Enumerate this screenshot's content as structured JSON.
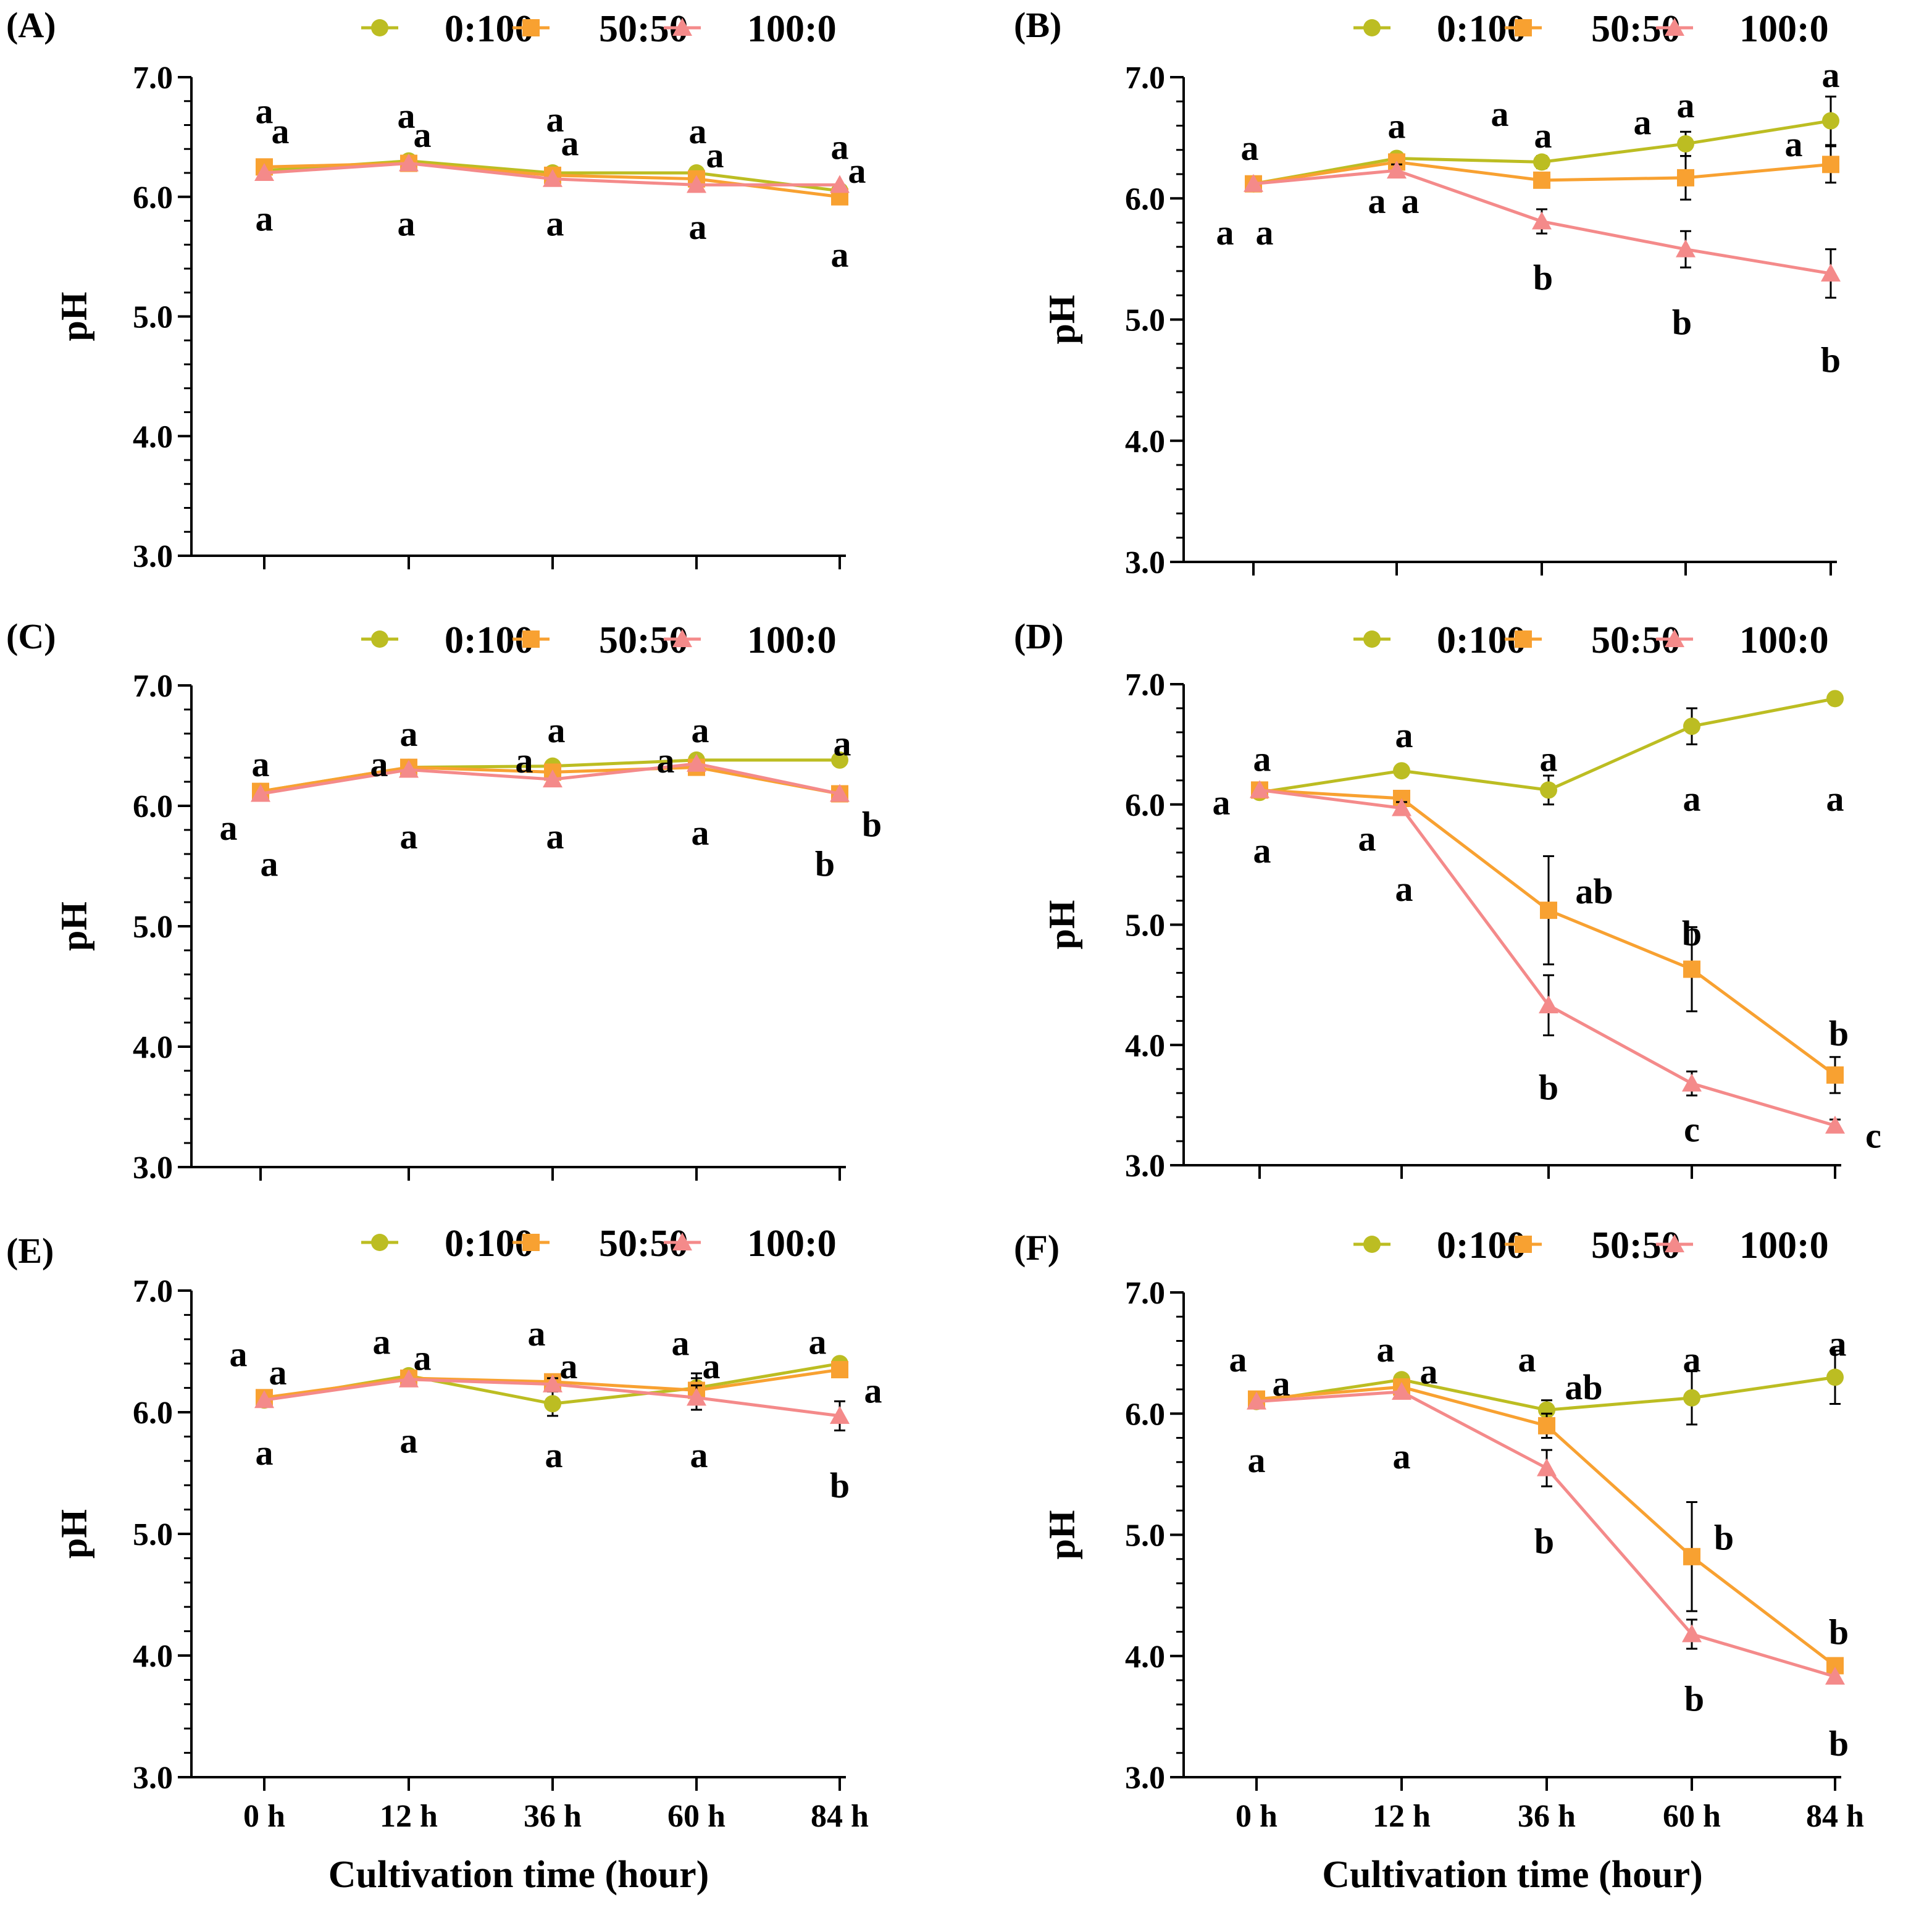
{
  "colors": {
    "s0": "#bcbd22",
    "s1": "#f8a131",
    "s2": "#f48a8a"
  },
  "chart_data": [
    {
      "panel": "(A)",
      "type": "line",
      "categories": [
        "0 h",
        "12 h",
        "36 h",
        "60 h",
        "84 h"
      ],
      "xlabel": "",
      "ylabel": "pH",
      "ylim": [
        3.0,
        7.0
      ],
      "yticks": [
        "3.0",
        "4.0",
        "5.0",
        "6.0",
        "7.0"
      ],
      "legend": [
        "0:100",
        "50:50",
        "100:0"
      ],
      "series": [
        {
          "name": "0:100",
          "values": [
            6.22,
            6.3,
            6.2,
            6.2,
            6.05
          ],
          "errors": [
            0,
            0,
            0,
            0,
            0
          ]
        },
        {
          "name": "50:50",
          "values": [
            6.25,
            6.28,
            6.18,
            6.15,
            6.0
          ],
          "errors": [
            0,
            0,
            0,
            0,
            0
          ]
        },
        {
          "name": "100:0",
          "values": [
            6.2,
            6.28,
            6.15,
            6.1,
            6.1
          ],
          "errors": [
            0,
            0,
            0,
            0,
            0
          ]
        }
      ],
      "annotations": [
        {
          "text": "a",
          "cat": 0,
          "y": 6.72,
          "dx": 0
        },
        {
          "text": "a",
          "cat": 0,
          "y": 6.55,
          "dx": 26
        },
        {
          "text": "a",
          "cat": 0,
          "y": 5.82,
          "dx": 0
        },
        {
          "text": "a",
          "cat": 1,
          "y": 6.68,
          "dx": -4
        },
        {
          "text": "a",
          "cat": 1,
          "y": 6.52,
          "dx": 22
        },
        {
          "text": "a",
          "cat": 1,
          "y": 5.78,
          "dx": -4
        },
        {
          "text": "a",
          "cat": 2,
          "y": 6.65,
          "dx": 4
        },
        {
          "text": "a",
          "cat": 2,
          "y": 6.45,
          "dx": 28
        },
        {
          "text": "a",
          "cat": 2,
          "y": 5.78,
          "dx": 4
        },
        {
          "text": "a",
          "cat": 3,
          "y": 6.55,
          "dx": 2
        },
        {
          "text": "a",
          "cat": 3,
          "y": 6.35,
          "dx": 30
        },
        {
          "text": "a",
          "cat": 3,
          "y": 5.75,
          "dx": 2
        },
        {
          "text": "a",
          "cat": 4,
          "y": 6.42,
          "dx": 0
        },
        {
          "text": "a",
          "cat": 4,
          "y": 6.22,
          "dx": 28
        },
        {
          "text": "a",
          "cat": 4,
          "y": 5.52,
          "dx": 0
        }
      ]
    },
    {
      "panel": "(B)",
      "type": "line",
      "categories": [
        "0 h",
        "12 h",
        "36 h",
        "60 h",
        "84 h"
      ],
      "xlabel": "",
      "ylabel": "pH",
      "ylim": [
        3.0,
        7.0
      ],
      "yticks": [
        "3.0",
        "4.0",
        "5.0",
        "6.0",
        "7.0"
      ],
      "legend": [
        "0:100",
        "50:50",
        "100:0"
      ],
      "series": [
        {
          "name": "0:100",
          "values": [
            6.12,
            6.33,
            6.3,
            6.45,
            6.64
          ],
          "errors": [
            0.03,
            0.04,
            0.05,
            0.1,
            0.2
          ]
        },
        {
          "name": "50:50",
          "values": [
            6.12,
            6.3,
            6.15,
            6.17,
            6.28
          ],
          "errors": [
            0.03,
            0.05,
            0.05,
            0.18,
            0.15
          ]
        },
        {
          "name": "100:0",
          "values": [
            6.12,
            6.23,
            5.81,
            5.58,
            5.38
          ],
          "errors": [
            0.03,
            0.05,
            0.1,
            0.15,
            0.2
          ]
        }
      ],
      "annotations": [
        {
          "text": "a",
          "cat": 0,
          "y": 6.42,
          "dx": -6
        },
        {
          "text": "a",
          "cat": 0,
          "y": 5.72,
          "dx": -46
        },
        {
          "text": "a",
          "cat": 0,
          "y": 5.72,
          "dx": 18
        },
        {
          "text": "a",
          "cat": 1,
          "y": 6.6,
          "dx": 0
        },
        {
          "text": "a",
          "cat": 1,
          "y": 5.98,
          "dx": -32
        },
        {
          "text": "a",
          "cat": 1,
          "y": 5.98,
          "dx": 22
        },
        {
          "text": "a",
          "cat": 2,
          "y": 6.7,
          "dx": -68
        },
        {
          "text": "a",
          "cat": 2,
          "y": 6.52,
          "dx": 2
        },
        {
          "text": "b",
          "cat": 2,
          "y": 5.35,
          "dx": 2
        },
        {
          "text": "a",
          "cat": 3,
          "y": 6.63,
          "dx": -70
        },
        {
          "text": "a",
          "cat": 3,
          "y": 6.77,
          "dx": 0
        },
        {
          "text": "b",
          "cat": 3,
          "y": 4.98,
          "dx": -6
        },
        {
          "text": "a",
          "cat": 4,
          "y": 6.45,
          "dx": -60
        },
        {
          "text": "a",
          "cat": 4,
          "y": 7.02,
          "dx": 0
        },
        {
          "text": "b",
          "cat": 4,
          "y": 4.67,
          "dx": 0
        }
      ]
    },
    {
      "panel": "(C)",
      "type": "line",
      "categories": [
        "0 h",
        "12 h",
        "36 h",
        "60 h",
        "84 h"
      ],
      "xlabel": "",
      "ylabel": "pH",
      "ylim": [
        3.0,
        7.0
      ],
      "yticks": [
        "3.0",
        "4.0",
        "5.0",
        "6.0",
        "7.0"
      ],
      "legend": [
        "0:100",
        "50:50",
        "100:0"
      ],
      "series": [
        {
          "name": "0:100",
          "values": [
            6.12,
            6.32,
            6.33,
            6.38,
            6.38
          ],
          "errors": [
            0,
            0,
            0,
            0,
            0
          ]
        },
        {
          "name": "50:50",
          "values": [
            6.12,
            6.32,
            6.28,
            6.32,
            6.1
          ],
          "errors": [
            0,
            0,
            0,
            0,
            0
          ]
        },
        {
          "name": "100:0",
          "values": [
            6.1,
            6.3,
            6.22,
            6.35,
            6.1
          ],
          "errors": [
            0,
            0,
            0,
            0,
            0
          ]
        }
      ],
      "annotations": [
        {
          "text": "a",
          "cat": 0,
          "y": 6.35,
          "dx": 0
        },
        {
          "text": "a",
          "cat": 0,
          "y": 5.82,
          "dx": -52
        },
        {
          "text": "a",
          "cat": 0,
          "y": 5.52,
          "dx": 14
        },
        {
          "text": "a",
          "cat": 1,
          "y": 6.6,
          "dx": 0
        },
        {
          "text": "a",
          "cat": 1,
          "y": 6.35,
          "dx": -48
        },
        {
          "text": "a",
          "cat": 1,
          "y": 5.75,
          "dx": 0
        },
        {
          "text": "a",
          "cat": 2,
          "y": 6.63,
          "dx": 6
        },
        {
          "text": "a",
          "cat": 2,
          "y": 6.38,
          "dx": -46
        },
        {
          "text": "a",
          "cat": 2,
          "y": 5.75,
          "dx": 4
        },
        {
          "text": "a",
          "cat": 3,
          "y": 6.63,
          "dx": 6
        },
        {
          "text": "a",
          "cat": 3,
          "y": 6.38,
          "dx": -50
        },
        {
          "text": "a",
          "cat": 3,
          "y": 5.78,
          "dx": 6
        },
        {
          "text": "a",
          "cat": 4,
          "y": 6.52,
          "dx": 4
        },
        {
          "text": "b",
          "cat": 4,
          "y": 5.85,
          "dx": 52
        },
        {
          "text": "b",
          "cat": 4,
          "y": 5.52,
          "dx": -24
        }
      ]
    },
    {
      "panel": "(D)",
      "type": "line",
      "categories": [
        "0 h",
        "12 h",
        "36 h",
        "60 h",
        "84 h"
      ],
      "xlabel": "",
      "ylabel": "pH",
      "ylim": [
        3.0,
        7.0
      ],
      "yticks": [
        "3.0",
        "4.0",
        "5.0",
        "6.0",
        "7.0"
      ],
      "legend": [
        "0:100",
        "50:50",
        "100:0"
      ],
      "series": [
        {
          "name": "0:100",
          "values": [
            6.1,
            6.28,
            6.12,
            6.65,
            6.88
          ],
          "errors": [
            0.03,
            0.03,
            0.12,
            0.15,
            0.03
          ]
        },
        {
          "name": "50:50",
          "values": [
            6.12,
            6.05,
            5.12,
            4.63,
            3.75
          ],
          "errors": [
            0.03,
            0.05,
            0.45,
            0.35,
            0.15
          ]
        },
        {
          "name": "100:0",
          "values": [
            6.12,
            5.97,
            4.33,
            3.68,
            3.33
          ],
          "errors": [
            0.03,
            0.05,
            0.25,
            0.1,
            0.05
          ]
        }
      ],
      "annotations": [
        {
          "text": "a",
          "cat": 0,
          "y": 6.38,
          "dx": 4
        },
        {
          "text": "a",
          "cat": 0,
          "y": 6.02,
          "dx": -62
        },
        {
          "text": "a",
          "cat": 0,
          "y": 5.62,
          "dx": 4
        },
        {
          "text": "a",
          "cat": 1,
          "y": 6.58,
          "dx": 4
        },
        {
          "text": "a",
          "cat": 1,
          "y": 5.72,
          "dx": -56
        },
        {
          "text": "a",
          "cat": 1,
          "y": 5.3,
          "dx": 4
        },
        {
          "text": "a",
          "cat": 2,
          "y": 6.38,
          "dx": 0
        },
        {
          "text": "ab",
          "cat": 2,
          "y": 5.28,
          "dx": 74
        },
        {
          "text": "b",
          "cat": 2,
          "y": 3.65,
          "dx": 0
        },
        {
          "text": "a",
          "cat": 3,
          "y": 6.05,
          "dx": 0
        },
        {
          "text": "b",
          "cat": 3,
          "y": 4.93,
          "dx": 0
        },
        {
          "text": "c",
          "cat": 3,
          "y": 3.3,
          "dx": 0
        },
        {
          "text": "a",
          "cat": 4,
          "y": 6.05,
          "dx": 0
        },
        {
          "text": "b",
          "cat": 4,
          "y": 4.1,
          "dx": 6
        },
        {
          "text": "c",
          "cat": 4,
          "y": 3.25,
          "dx": 62
        }
      ]
    },
    {
      "panel": "(E)",
      "type": "line",
      "categories": [
        "0 h",
        "12 h",
        "36 h",
        "60 h",
        "84 h"
      ],
      "xlabel": "Cultivation time (hour)",
      "ylabel": "pH",
      "ylim": [
        3.0,
        7.0
      ],
      "yticks": [
        "3.0",
        "4.0",
        "5.0",
        "6.0",
        "7.0"
      ],
      "legend": [
        "0:100",
        "50:50",
        "100:0"
      ],
      "series": [
        {
          "name": "0:100",
          "values": [
            6.1,
            6.3,
            6.07,
            6.2,
            6.4
          ],
          "errors": [
            0.03,
            0.03,
            0.1,
            0.12,
            0.03
          ]
        },
        {
          "name": "50:50",
          "values": [
            6.12,
            6.28,
            6.25,
            6.18,
            6.35
          ],
          "errors": [
            0.03,
            0.03,
            0.05,
            0.1,
            0.05
          ]
        },
        {
          "name": "100:0",
          "values": [
            6.1,
            6.27,
            6.23,
            6.12,
            5.97
          ],
          "errors": [
            0.03,
            0.03,
            0.05,
            0.1,
            0.12
          ]
        }
      ],
      "annotations": [
        {
          "text": "a",
          "cat": 0,
          "y": 6.48,
          "dx": -42
        },
        {
          "text": "a",
          "cat": 0,
          "y": 6.33,
          "dx": 22
        },
        {
          "text": "a",
          "cat": 0,
          "y": 5.67,
          "dx": 0
        },
        {
          "text": "a",
          "cat": 1,
          "y": 6.58,
          "dx": -44
        },
        {
          "text": "a",
          "cat": 1,
          "y": 6.45,
          "dx": 22
        },
        {
          "text": "a",
          "cat": 1,
          "y": 5.77,
          "dx": 0
        },
        {
          "text": "a",
          "cat": 2,
          "y": 6.65,
          "dx": -26
        },
        {
          "text": "a",
          "cat": 2,
          "y": 6.38,
          "dx": 26
        },
        {
          "text": "a",
          "cat": 2,
          "y": 5.65,
          "dx": 2
        },
        {
          "text": "a",
          "cat": 3,
          "y": 6.57,
          "dx": -26
        },
        {
          "text": "a",
          "cat": 3,
          "y": 6.38,
          "dx": 24
        },
        {
          "text": "a",
          "cat": 3,
          "y": 5.65,
          "dx": 4
        },
        {
          "text": "a",
          "cat": 4,
          "y": 6.58,
          "dx": -36
        },
        {
          "text": "a",
          "cat": 4,
          "y": 6.18,
          "dx": 54
        },
        {
          "text": "b",
          "cat": 4,
          "y": 5.4,
          "dx": 0
        }
      ]
    },
    {
      "panel": "(F)",
      "type": "line",
      "categories": [
        "0 h",
        "12 h",
        "36 h",
        "60 h",
        "84 h"
      ],
      "xlabel": "Cultivation time (hour)",
      "ylabel": "pH",
      "ylim": [
        3.0,
        7.0
      ],
      "yticks": [
        "3.0",
        "4.0",
        "5.0",
        "6.0",
        "7.0"
      ],
      "legend": [
        "0:100",
        "50:50",
        "100:0"
      ],
      "series": [
        {
          "name": "0:100",
          "values": [
            6.1,
            6.28,
            6.03,
            6.13,
            6.3
          ],
          "errors": [
            0.03,
            0.03,
            0.08,
            0.22,
            0.22
          ]
        },
        {
          "name": "50:50",
          "values": [
            6.12,
            6.22,
            5.9,
            4.82,
            3.92
          ],
          "errors": [
            0.03,
            0.03,
            0.1,
            0.45,
            0.05
          ]
        },
        {
          "name": "100:0",
          "values": [
            6.1,
            6.18,
            5.55,
            4.18,
            3.83
          ],
          "errors": [
            0.03,
            0.03,
            0.15,
            0.12,
            0.03
          ]
        }
      ],
      "annotations": [
        {
          "text": "a",
          "cat": 0,
          "y": 6.45,
          "dx": -30
        },
        {
          "text": "a",
          "cat": 0,
          "y": 6.25,
          "dx": 40
        },
        {
          "text": "a",
          "cat": 0,
          "y": 5.62,
          "dx": 0
        },
        {
          "text": "a",
          "cat": 1,
          "y": 6.53,
          "dx": -26
        },
        {
          "text": "a",
          "cat": 1,
          "y": 6.35,
          "dx": 44
        },
        {
          "text": "a",
          "cat": 1,
          "y": 5.65,
          "dx": 0
        },
        {
          "text": "a",
          "cat": 2,
          "y": 6.45,
          "dx": -32
        },
        {
          "text": "ab",
          "cat": 2,
          "y": 6.22,
          "dx": 60
        },
        {
          "text": "b",
          "cat": 2,
          "y": 4.95,
          "dx": -4
        },
        {
          "text": "a",
          "cat": 3,
          "y": 6.45,
          "dx": 0
        },
        {
          "text": "b",
          "cat": 3,
          "y": 4.98,
          "dx": 52
        },
        {
          "text": "b",
          "cat": 3,
          "y": 3.65,
          "dx": 4
        },
        {
          "text": "a",
          "cat": 4,
          "y": 6.58,
          "dx": 4
        },
        {
          "text": "b",
          "cat": 4,
          "y": 4.2,
          "dx": 6
        },
        {
          "text": "b",
          "cat": 4,
          "y": 3.28,
          "dx": 6
        }
      ]
    }
  ]
}
